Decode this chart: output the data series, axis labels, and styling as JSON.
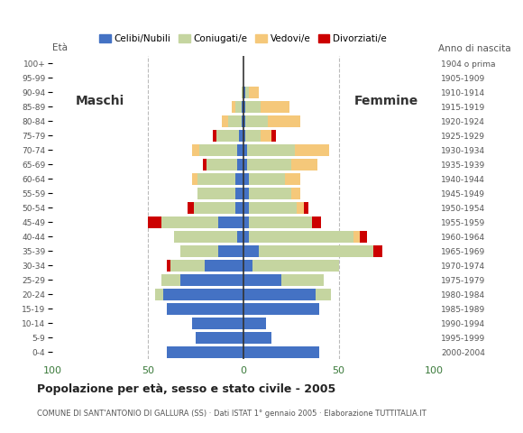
{
  "age_groups": [
    "0-4",
    "5-9",
    "10-14",
    "15-19",
    "20-24",
    "25-29",
    "30-34",
    "35-39",
    "40-44",
    "45-49",
    "50-54",
    "55-59",
    "60-64",
    "65-69",
    "70-74",
    "75-79",
    "80-84",
    "85-89",
    "90-94",
    "95-99",
    "100+"
  ],
  "birth_years": [
    "2000-2004",
    "1995-1999",
    "1990-1994",
    "1985-1989",
    "1980-1984",
    "1975-1979",
    "1970-1974",
    "1965-1969",
    "1960-1964",
    "1955-1959",
    "1950-1954",
    "1945-1949",
    "1940-1944",
    "1935-1939",
    "1930-1934",
    "1925-1929",
    "1920-1924",
    "1915-1919",
    "1910-1914",
    "1905-1909",
    "1904 o prima"
  ],
  "male": {
    "celibi": [
      40,
      25,
      27,
      40,
      42,
      33,
      20,
      13,
      3,
      13,
      4,
      4,
      4,
      3,
      3,
      2,
      1,
      1,
      0,
      0,
      0
    ],
    "coniugati": [
      0,
      0,
      0,
      0,
      4,
      10,
      18,
      20,
      33,
      30,
      22,
      20,
      20,
      16,
      20,
      12,
      7,
      3,
      1,
      0,
      0
    ],
    "vedovi": [
      0,
      0,
      0,
      0,
      0,
      0,
      0,
      0,
      0,
      0,
      0,
      0,
      3,
      0,
      4,
      0,
      3,
      2,
      0,
      0,
      0
    ],
    "divorziati": [
      0,
      0,
      0,
      0,
      0,
      0,
      2,
      0,
      0,
      7,
      3,
      0,
      0,
      2,
      0,
      2,
      0,
      0,
      0,
      0,
      0
    ]
  },
  "female": {
    "nubili": [
      40,
      15,
      12,
      40,
      38,
      20,
      5,
      8,
      3,
      3,
      3,
      3,
      3,
      2,
      2,
      1,
      1,
      1,
      1,
      0,
      0
    ],
    "coniugate": [
      0,
      0,
      0,
      0,
      8,
      22,
      45,
      60,
      55,
      33,
      25,
      22,
      19,
      23,
      25,
      8,
      12,
      8,
      2,
      0,
      0
    ],
    "vedove": [
      0,
      0,
      0,
      0,
      0,
      0,
      0,
      0,
      3,
      0,
      4,
      5,
      8,
      14,
      18,
      6,
      17,
      15,
      5,
      0,
      0
    ],
    "divorziate": [
      0,
      0,
      0,
      0,
      0,
      0,
      0,
      5,
      4,
      5,
      2,
      0,
      0,
      0,
      0,
      2,
      0,
      0,
      0,
      0,
      0
    ]
  },
  "colors": {
    "celibi": "#4472c4",
    "coniugati": "#c5d5a0",
    "vedovi": "#f5c87a",
    "divorziati": "#cc0000"
  },
  "xlim": 100,
  "title": "Popolazione per età, sesso e stato civile - 2005",
  "subtitle": "COMUNE DI SANT'ANTONIO DI GALLURA (SS) · Dati ISTAT 1° gennaio 2005 · Elaborazione TUTTITALIA.IT",
  "label_maschi": "Maschi",
  "label_femmine": "Femmine",
  "ylabel_left": "Età",
  "ylabel_right": "Anno di nascita",
  "legend_labels": [
    "Celibi/Nubili",
    "Coniugati/e",
    "Vedovi/e",
    "Divorziati/e"
  ],
  "background_color": "#ffffff",
  "grid_color": "#bbbbbb"
}
